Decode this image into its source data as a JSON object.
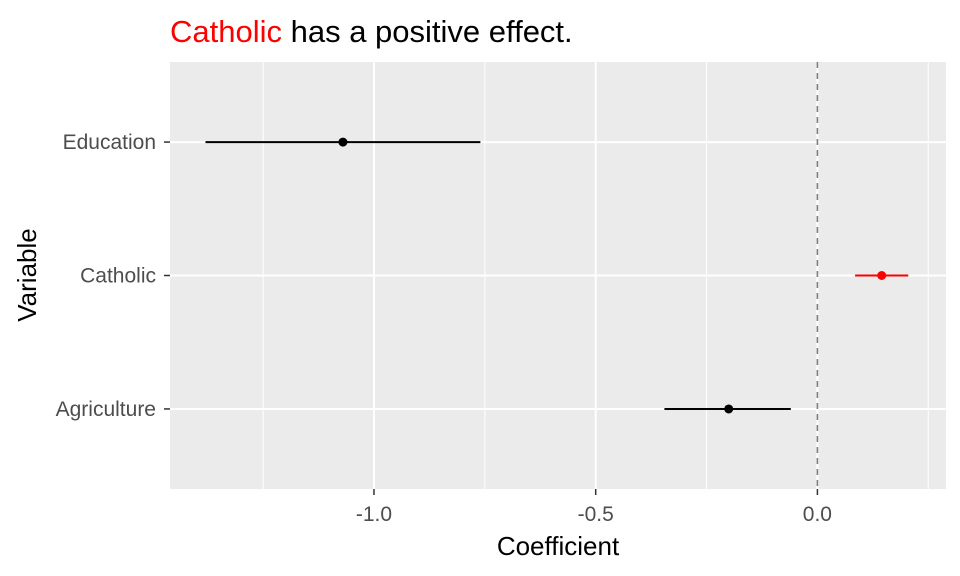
{
  "chart_data": {
    "type": "coefficient-plot",
    "title": {
      "highlight": "Catholic",
      "rest": " has a positive effect."
    },
    "xlabel": "Coefficient",
    "ylabel": "Variable",
    "xlim": [
      -1.46,
      0.29
    ],
    "x_ticks": [
      -1.0,
      -0.5,
      0.0
    ],
    "x_tick_labels": [
      "-1.0",
      "-0.5",
      "0.0"
    ],
    "x_minor_ticks": [
      -1.25,
      -0.75,
      -0.25,
      0.25
    ],
    "reference_line": {
      "x": 0.0,
      "style": "dashed"
    },
    "categories": [
      "Education",
      "Catholic",
      "Agriculture"
    ],
    "points": [
      {
        "variable": "Education",
        "estimate": -1.07,
        "lower": -1.38,
        "upper": -0.76,
        "highlight": false
      },
      {
        "variable": "Catholic",
        "estimate": 0.145,
        "lower": 0.085,
        "upper": 0.205,
        "highlight": true
      },
      {
        "variable": "Agriculture",
        "estimate": -0.2,
        "lower": -0.345,
        "upper": -0.06,
        "highlight": false
      }
    ],
    "grid": true,
    "colors": {
      "panel_background": "#EBEBEB",
      "grid": "#FFFFFF",
      "highlight": "#FF0000",
      "default": "#000000",
      "reference_line": "#7F7F7F"
    }
  }
}
